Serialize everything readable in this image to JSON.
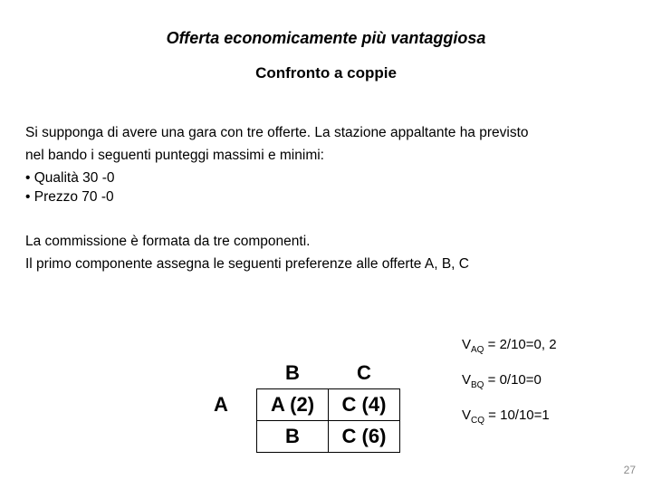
{
  "title": "Offerta economicamente più vantaggiosa",
  "subtitle": "Confronto a coppie",
  "para1a": "Si supponga di avere una gara con tre offerte. La stazione appaltante ha previsto",
  "para1b": "nel bando i seguenti punteggi massimi e minimi:",
  "bullet1": "• Qualità  30 -0",
  "bullet2": "• Prezzo 70 -0",
  "para2a": "La commissione è formata da tre componenti.",
  "para2b": "Il primo componente assegna le seguenti preferenze alle offerte A, B, C",
  "table": {
    "col_B": "B",
    "col_C": "C",
    "row_A": "A",
    "row_B": "B",
    "c_AB": "A (2)",
    "c_AC": "C (4)",
    "c_BC": "C (6)"
  },
  "formulas": {
    "f1_pre": "V",
    "f1_sub": "AQ",
    "f1_post": " = 2/10=0, 2",
    "f2_pre": "V",
    "f2_sub": "BQ",
    "f2_post": " = 0/10=0",
    "f3_pre": "V",
    "f3_sub": "CQ",
    "f3_post": " = 10/10=1"
  },
  "pagenum": "27"
}
